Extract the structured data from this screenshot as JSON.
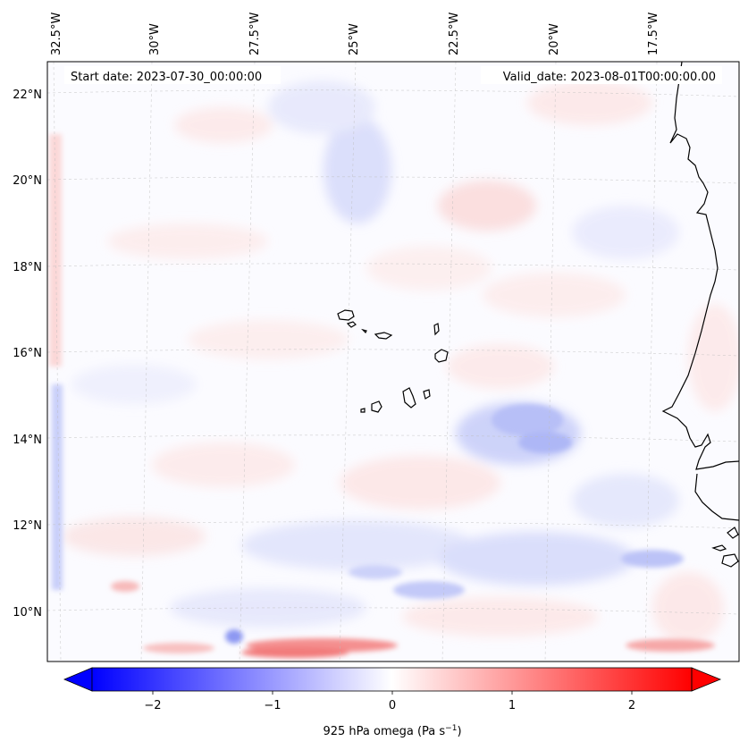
{
  "map": {
    "start_date": "Start date: 2023-07-30_00:00:00",
    "valid_date": "Valid_date: 2023-08-01T00:00:00.00",
    "lon_ticks": [
      "32.5°W",
      "30°W",
      "27.5°W",
      "25°W",
      "22.5°W",
      "20°W",
      "17.5°W"
    ],
    "lat_ticks": [
      "22°N",
      "20°N",
      "18°N",
      "16°N",
      "14°N",
      "12°N",
      "10°N"
    ],
    "lon_values": [
      -32.5,
      -30,
      -27.5,
      -25,
      -22.5,
      -20,
      -17.5
    ],
    "lat_values": [
      22,
      20,
      18,
      16,
      14,
      12,
      10
    ],
    "extent": {
      "lon_min": -32.6,
      "lon_max": -15.9,
      "lat_min": 8.9,
      "lat_max": 22.8
    }
  },
  "colorbar": {
    "label_prefix": "925 hPa omega (Pa s",
    "label_exponent": "−1",
    "label_suffix": ")",
    "ticks": [
      "−2",
      "−1",
      "0",
      "1",
      "2"
    ],
    "tick_values": [
      -2,
      -1,
      0,
      1,
      2
    ],
    "vmin": -2.5,
    "vmax": 2.5,
    "cmap": "bwr",
    "colors": {
      "negative": "#0000ff",
      "neutral": "#ffffff",
      "positive": "#ff0000"
    }
  }
}
